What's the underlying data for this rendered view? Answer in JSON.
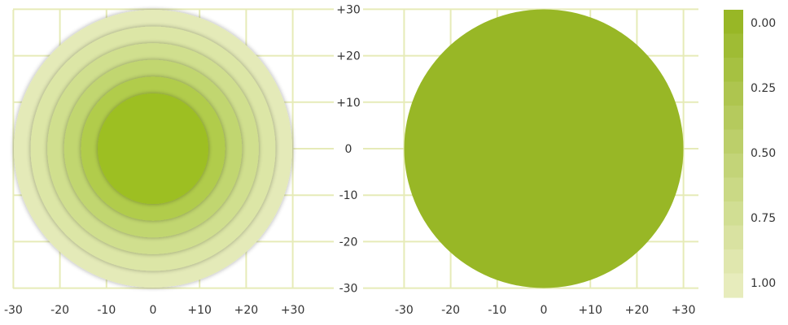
{
  "x_ticks": [
    "-30",
    "-20",
    "-10",
    "0",
    "+10",
    "+20",
    "+30"
  ],
  "y_ticks": [
    "+30",
    "+20",
    "+10",
    "0",
    "-10",
    "-20",
    "-30"
  ],
  "left_panel": {
    "ring_count": 6,
    "ring_colors": [
      "#e4eab8",
      "#dce6a6",
      "#d0df8e",
      "#c1d66f",
      "#b1cc4b",
      "#9dbf22"
    ]
  },
  "right_panel": {
    "fill_color": "#98b726"
  },
  "colorbar": {
    "labels": [
      "0.00",
      "0.25",
      "0.50",
      "0.75",
      "1.00"
    ],
    "steps": 12,
    "top_color": "#98b726",
    "bottom_color": "#e7ecbc"
  }
}
